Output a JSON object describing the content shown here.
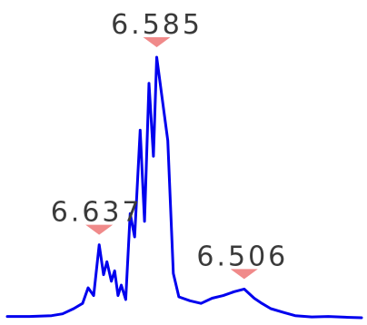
{
  "chart_data": {
    "type": "line",
    "title": "",
    "xlabel": "",
    "ylabel": "",
    "grid": false,
    "xlim": [
      6.72,
      6.4
    ],
    "ylim": [
      0,
      100
    ],
    "line_color": "#0000ee",
    "marker_color": "#f08a8a",
    "label_color": "#3a3a3a",
    "peak_labels": [
      {
        "text": "6.585",
        "x": 6.585,
        "y": 100
      },
      {
        "text": "6.637",
        "x": 6.637,
        "y": 28
      },
      {
        "text": "6.506",
        "x": 6.506,
        "y": 11
      }
    ],
    "series": [
      {
        "points": [
          [
            6.72,
            0.5
          ],
          [
            6.7,
            0.5
          ],
          [
            6.68,
            0.8
          ],
          [
            6.67,
            1.5
          ],
          [
            6.66,
            3.5
          ],
          [
            6.652,
            5.5
          ],
          [
            6.647,
            11.5
          ],
          [
            6.642,
            8.5
          ],
          [
            6.637,
            28.0
          ],
          [
            6.633,
            16.5
          ],
          [
            6.63,
            21.5
          ],
          [
            6.626,
            14.0
          ],
          [
            6.623,
            18.0
          ],
          [
            6.62,
            8.5
          ],
          [
            6.617,
            12.5
          ],
          [
            6.613,
            7.0
          ],
          [
            6.609,
            40.0
          ],
          [
            6.605,
            31.0
          ],
          [
            6.6,
            72.0
          ],
          [
            6.596,
            37.0
          ],
          [
            6.592,
            90.0
          ],
          [
            6.588,
            62.0
          ],
          [
            6.585,
            100.0
          ],
          [
            6.58,
            84.0
          ],
          [
            6.575,
            68.0
          ],
          [
            6.57,
            17.0
          ],
          [
            6.565,
            8.0
          ],
          [
            6.555,
            6.5
          ],
          [
            6.545,
            5.5
          ],
          [
            6.535,
            7.5
          ],
          [
            6.525,
            8.5
          ],
          [
            6.515,
            10.0
          ],
          [
            6.506,
            11.0
          ],
          [
            6.497,
            7.5
          ],
          [
            6.49,
            5.5
          ],
          [
            6.482,
            3.5
          ],
          [
            6.47,
            2.0
          ],
          [
            6.46,
            0.8
          ],
          [
            6.445,
            0.3
          ],
          [
            6.43,
            0.5
          ],
          [
            6.415,
            0.2
          ],
          [
            6.4,
            0.0
          ]
        ]
      }
    ]
  }
}
